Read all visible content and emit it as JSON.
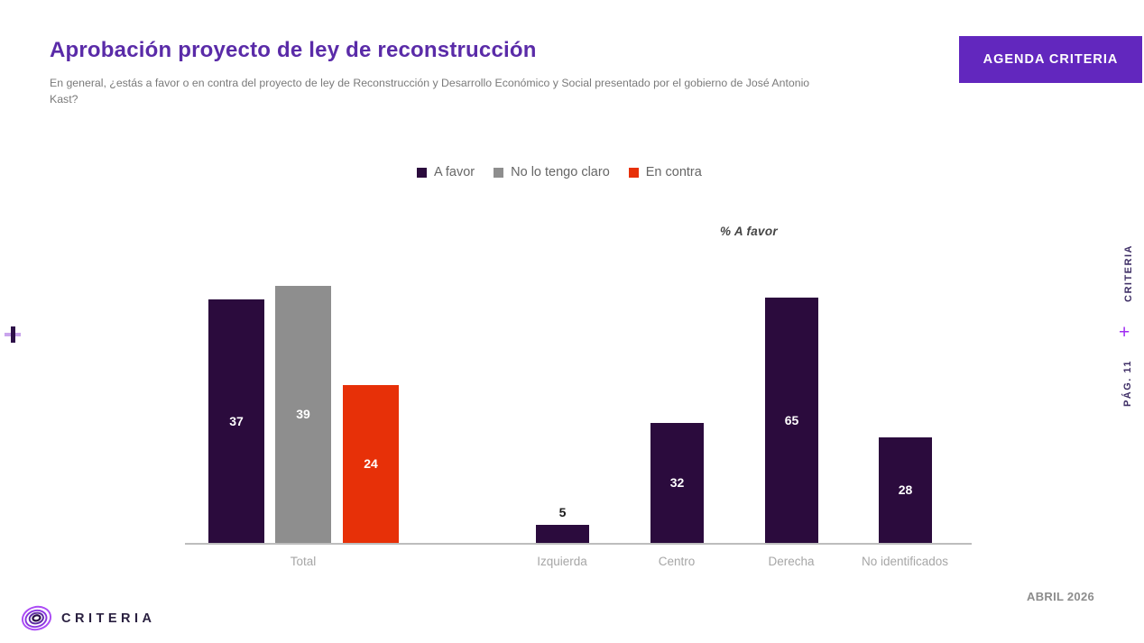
{
  "header": {
    "title": "Aprobación proyecto de ley de reconstrucción",
    "subtitle": "En general, ¿estás a favor o en contra del proyecto de ley de Reconstrucción y Desarrollo Económico y Social presentado por el gobierno de José Antonio Kast?",
    "agenda_button_label": "AGENDA CRITERIA"
  },
  "colors": {
    "accent_purple": "#5A2BA8",
    "button_purple": "#6227BE",
    "bar_dark_purple": "#2B0B3D",
    "bar_gray": "#8E8E8E",
    "bar_red": "#E73008",
    "bright_plus_purple": "#A02CF2"
  },
  "legend": {
    "items": [
      {
        "label": "A favor",
        "color": "#2B0B3D"
      },
      {
        "label": "No lo tengo claro",
        "color": "#8E8E8E"
      },
      {
        "label": "En contra",
        "color": "#E73008"
      }
    ]
  },
  "chart_data": [
    {
      "type": "bar",
      "name": "total",
      "categories": [
        "Total"
      ],
      "series": [
        {
          "name": "A favor",
          "values": [
            37
          ],
          "color": "#2B0B3D"
        },
        {
          "name": "No lo tengo claro",
          "values": [
            39
          ],
          "color": "#8E8E8E"
        },
        {
          "name": "En contra",
          "values": [
            24
          ],
          "color": "#E73008"
        }
      ],
      "unit": "%",
      "ylim": [
        0,
        40
      ],
      "value_labels": "inside, white",
      "grid": false
    },
    {
      "type": "bar",
      "name": "a-favor-por-identificacion-politica",
      "title": "% A favor",
      "categories": [
        "Izquierda",
        "Centro",
        "Derecha",
        "No identificados"
      ],
      "values": [
        5,
        32,
        65,
        28
      ],
      "color": "#2B0B3D",
      "unit": "%",
      "ylim": [
        0,
        70
      ],
      "value_labels": "inside white; above bar when bar too short",
      "grid": false
    }
  ],
  "right_rail": {
    "brand": "CRITERIA",
    "plus": "+",
    "page_label": "PÁG. 11"
  },
  "left_rail": {
    "plus": "+"
  },
  "footer": {
    "logo_text": "CRITERIA",
    "date_label": "ABRIL 2026"
  }
}
